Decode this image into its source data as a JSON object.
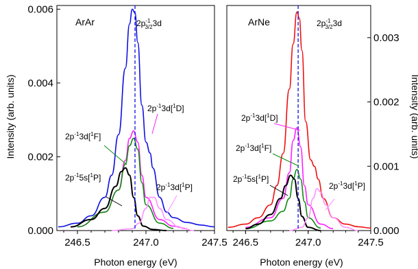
{
  "chart_data": [
    {
      "type": "line",
      "title": "ArAr",
      "xlabel": "Photon energy (eV)",
      "ylabel": "Intensity (arb. units)",
      "xlim": [
        246.35,
        247.5
      ],
      "ylim": [
        0,
        0.0061
      ],
      "xticks": [
        "246.5",
        "247.0",
        "247.5"
      ],
      "xtick_values": [
        246.5,
        247.0,
        247.5
      ],
      "yticks": [
        "0.000",
        "0.002",
        "0.004",
        "0.006"
      ],
      "ytick_values": [
        0,
        0.002,
        0.004,
        0.006
      ],
      "y_axis_side": "left",
      "dashed_line_x": 246.92,
      "series": [
        {
          "key": "total",
          "color": "#1010e0",
          "x": [
            246.36,
            246.5,
            246.6,
            246.7,
            246.75,
            246.8,
            246.85,
            246.88,
            246.9,
            246.92,
            246.94,
            246.97,
            247.0,
            247.03,
            247.05,
            247.1,
            247.15,
            247.2,
            247.3,
            247.4,
            247.5
          ],
          "y": [
            0.0001,
            0.0002,
            0.0004,
            0.0009,
            0.0015,
            0.0026,
            0.0044,
            0.0056,
            0.006,
            0.0059,
            0.0051,
            0.0034,
            0.0024,
            0.0021,
            0.0017,
            0.0009,
            0.0005,
            0.00035,
            0.00022,
            0.00015,
            0.0001
          ]
        },
        {
          "key": "1D",
          "color": "#ff20ff",
          "x": [
            246.5,
            246.7,
            246.8,
            246.85,
            246.88,
            246.91,
            246.94,
            246.97,
            247.0,
            247.1,
            247.2,
            247.3
          ],
          "y": [
            0.0001,
            0.0005,
            0.0011,
            0.0019,
            0.0025,
            0.0027,
            0.0024,
            0.0015,
            0.0009,
            0.0003,
            0.00012,
            5e-05
          ]
        },
        {
          "key": "1F",
          "color": "#108a10",
          "x": [
            246.5,
            246.7,
            246.8,
            246.85,
            246.88,
            246.91,
            246.94,
            246.97,
            247.0,
            247.1,
            247.2
          ],
          "y": [
            0.0001,
            0.0005,
            0.0011,
            0.0018,
            0.0023,
            0.0025,
            0.0022,
            0.0013,
            0.0007,
            0.0002,
            6e-05
          ]
        },
        {
          "key": "1P5s",
          "color": "#000000",
          "x": [
            246.45,
            246.6,
            246.7,
            246.78,
            246.82,
            246.85,
            246.88,
            246.91,
            246.94,
            246.98,
            247.05,
            247.15
          ],
          "y": [
            0.0001,
            0.0003,
            0.0006,
            0.0012,
            0.0016,
            0.0017,
            0.0015,
            0.0009,
            0.0004,
            0.00012,
            3e-05,
            0.0
          ],
          "width": 2
        },
        {
          "key": "1P3d",
          "color": "#ff90ff",
          "x": [
            246.75,
            246.9,
            246.95,
            247.0,
            247.03,
            247.06,
            247.1,
            247.15,
            247.25,
            247.35
          ],
          "y": [
            0.0,
            5e-05,
            0.0002,
            0.0006,
            0.0009,
            0.0009,
            0.0006,
            0.0003,
            8e-05,
            0.0
          ]
        }
      ],
      "annotations": [
        {
          "key": "peak",
          "base": "2p",
          "sup1": "-1",
          "sub": "3/2",
          "rest": "3d"
        },
        {
          "key": "1D",
          "base": "2p",
          "sup1": "-1",
          "rest": "3d[",
          "sup2": "1",
          "rest2": "D]"
        },
        {
          "key": "1F",
          "base": "2p",
          "sup1": "-1",
          "rest": "3d[",
          "sup2": "1",
          "rest2": "F]"
        },
        {
          "key": "1P5s",
          "base": "2p",
          "sup1": "-1",
          "rest": "5s[",
          "sup2": "1",
          "rest2": "P]"
        },
        {
          "key": "1P3d",
          "base": "2p",
          "sup1": "-1",
          "rest": "3d[",
          "sup2": "1",
          "rest2": "P]"
        }
      ]
    },
    {
      "type": "line",
      "title": "ArNe",
      "xlabel": "Photon energy (eV)",
      "ylabel": "Intensity (arb. units)",
      "xlim": [
        246.35,
        247.5
      ],
      "ylim": [
        0,
        0.0035
      ],
      "xticks": [
        "246.5",
        "247.0",
        "247.5"
      ],
      "xtick_values": [
        246.5,
        247.0,
        247.5
      ],
      "yticks": [
        "0.000",
        "0.001",
        "0.002",
        "0.003"
      ],
      "ytick_values": [
        0,
        0.001,
        0.002,
        0.003
      ],
      "y_axis_side": "right",
      "dashed_line_x": 246.92,
      "series": [
        {
          "key": "total",
          "color": "#ee1010",
          "x": [
            246.36,
            246.5,
            246.6,
            246.7,
            246.75,
            246.8,
            246.85,
            246.88,
            246.91,
            246.93,
            246.95,
            246.98,
            247.02,
            247.05,
            247.08,
            247.12,
            247.2,
            247.3,
            247.4,
            247.5
          ],
          "y": [
            5e-05,
            0.0001,
            0.0002,
            0.0004,
            0.0007,
            0.0012,
            0.0022,
            0.0029,
            0.0034,
            0.0033,
            0.0028,
            0.0017,
            0.0011,
            0.001,
            0.0008,
            0.0005,
            0.0002,
            0.0001,
            6e-05,
            4e-05
          ]
        },
        {
          "key": "1D",
          "color": "#ff20ff",
          "x": [
            246.5,
            246.7,
            246.8,
            246.85,
            246.88,
            246.91,
            246.94,
            246.97,
            247.0,
            247.1,
            247.2
          ],
          "y": [
            5e-05,
            0.0002,
            0.0005,
            0.0009,
            0.0014,
            0.0016,
            0.0013,
            0.0007,
            0.0004,
            0.0001,
            3e-05
          ]
        },
        {
          "key": "1F",
          "color": "#108a10",
          "x": [
            246.5,
            246.7,
            246.8,
            246.85,
            246.88,
            246.91,
            246.94,
            246.97,
            247.0,
            247.1
          ],
          "y": [
            3e-05,
            0.00015,
            0.0003,
            0.0005,
            0.0008,
            0.00095,
            0.0008,
            0.00045,
            0.0002,
            4e-05
          ]
        },
        {
          "key": "1P5s",
          "color": "#000000",
          "x": [
            246.5,
            246.6,
            246.7,
            246.78,
            246.82,
            246.86,
            246.89,
            246.92,
            246.95,
            247.0,
            247.1
          ],
          "y": [
            3e-05,
            0.0001,
            0.00025,
            0.0005,
            0.0007,
            0.00086,
            0.0008,
            0.0005,
            0.00022,
            5e-05,
            0.0
          ],
          "width": 2
        },
        {
          "key": "1P3d",
          "color": "#ff90ff",
          "x": [
            246.85,
            246.95,
            247.0,
            247.04,
            247.07,
            247.1,
            247.14,
            247.2,
            247.3,
            247.4
          ],
          "y": [
            0.0,
            5e-05,
            0.0002,
            0.0005,
            0.00065,
            0.0006,
            0.0004,
            0.0002,
            5e-05,
            0.0
          ]
        }
      ],
      "annotations": [
        {
          "key": "peak",
          "base": "2p",
          "sup1": "-1",
          "sub": "3/2",
          "rest": "3d"
        },
        {
          "key": "1D",
          "base": "2p",
          "sup1": "-1",
          "rest": "3d[",
          "sup2": "1",
          "rest2": "D]"
        },
        {
          "key": "1F",
          "base": "2p",
          "sup1": "-1",
          "rest": "3d[",
          "sup2": "1",
          "rest2": "F]"
        },
        {
          "key": "1P5s",
          "base": "2p",
          "sup1": "-1",
          "rest": "5s[",
          "sup2": "1",
          "rest2": "P]"
        },
        {
          "key": "1P3d",
          "base": "2p",
          "sup1": "-1",
          "rest": "3d[",
          "sup2": "1",
          "rest2": "P]"
        }
      ]
    }
  ]
}
